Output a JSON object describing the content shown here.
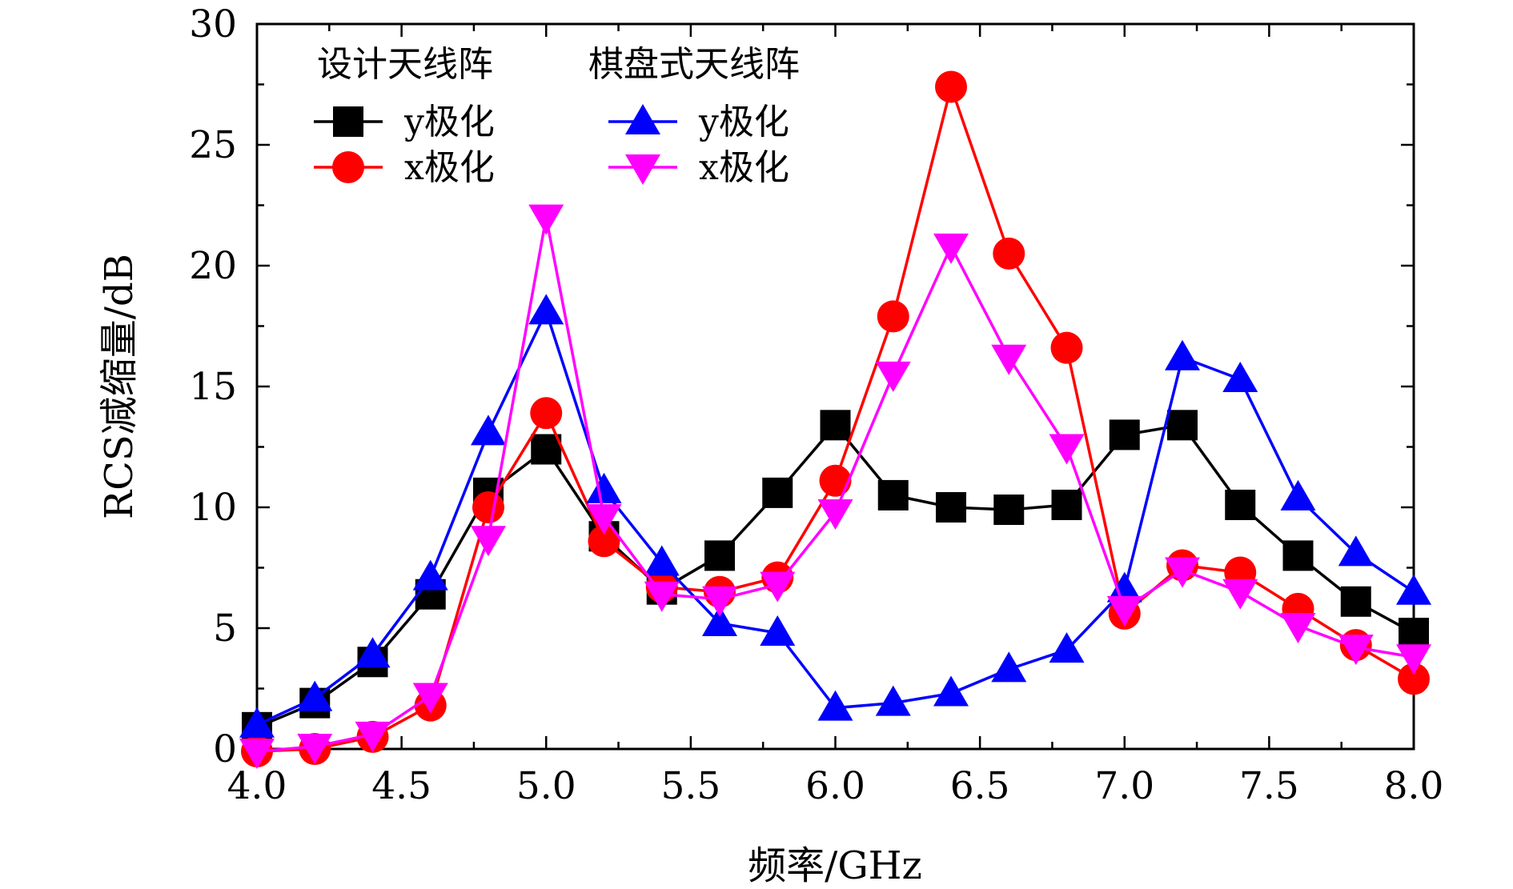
{
  "chart_data": {
    "type": "line",
    "xlabel": "频率/GHz",
    "ylabel": "RCS减缩量/dB",
    "xlim": [
      4.0,
      8.0
    ],
    "ylim": [
      0,
      30
    ],
    "x_ticks": [
      "4.0",
      "4.5",
      "5.0",
      "5.5",
      "6.0",
      "6.5",
      "7.0",
      "7.5",
      "8.0"
    ],
    "y_ticks": [
      "0",
      "5",
      "10",
      "15",
      "20",
      "25",
      "30"
    ],
    "grid": false,
    "legend_position": "top-left",
    "legend_groups": [
      "设计天线阵",
      "棋盘式天线阵"
    ],
    "x": [
      4.0,
      4.2,
      4.4,
      4.6,
      4.8,
      5.0,
      5.2,
      5.4,
      5.6,
      5.8,
      6.0,
      6.2,
      6.4,
      6.6,
      6.8,
      7.0,
      7.2,
      7.4,
      7.6,
      7.8,
      8.0
    ],
    "series": [
      {
        "name": "y极化",
        "group": "设计天线阵",
        "color": "#000000",
        "marker": "square",
        "values": [
          0.9,
          1.9,
          3.6,
          6.4,
          10.6,
          12.4,
          8.8,
          6.6,
          8.0,
          10.6,
          13.4,
          10.5,
          10.0,
          9.9,
          10.1,
          13.0,
          13.4,
          10.1,
          8.0,
          6.1,
          4.8
        ]
      },
      {
        "name": "x极化",
        "group": "设计天线阵",
        "color": "#ff0000",
        "marker": "circle",
        "values": [
          -0.1,
          0.0,
          0.5,
          1.8,
          10.0,
          13.9,
          8.6,
          6.7,
          6.5,
          7.1,
          11.1,
          17.9,
          27.4,
          20.5,
          16.6,
          5.6,
          7.6,
          7.3,
          5.8,
          4.3,
          2.9
        ]
      },
      {
        "name": "y极化",
        "group": "棋盘式天线阵",
        "color": "#0000ff",
        "marker": "triangle-up",
        "values": [
          1.0,
          2.1,
          3.9,
          7.1,
          13.1,
          18.1,
          10.7,
          7.7,
          5.2,
          4.8,
          1.7,
          1.9,
          2.3,
          3.3,
          4.1,
          6.6,
          16.2,
          15.3,
          10.4,
          8.1,
          6.5
        ]
      },
      {
        "name": "x极化",
        "group": "棋盘式天线阵",
        "color": "#ff00ff",
        "marker": "triangle-down",
        "values": [
          -0.1,
          0.1,
          0.6,
          2.2,
          8.7,
          22.0,
          9.6,
          6.4,
          6.2,
          6.8,
          9.8,
          15.5,
          20.8,
          16.2,
          12.5,
          5.8,
          7.4,
          6.5,
          5.1,
          4.2,
          3.8
        ]
      }
    ]
  }
}
